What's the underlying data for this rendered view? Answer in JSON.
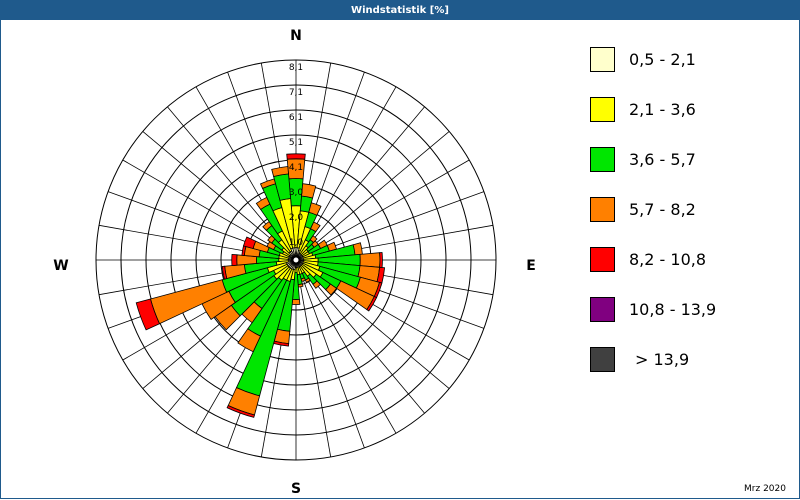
{
  "window": {
    "title": "Windstatistik [%]"
  },
  "credit": "Mrz 2020",
  "chart_data": {
    "type": "windrose",
    "title": "Windstatistik [%]",
    "directions": [
      "N",
      "E",
      "S",
      "W"
    ],
    "radial_ticks": [
      "1,0",
      "2,0",
      "3,0",
      "4,1",
      "5,1",
      "6,1",
      "7,1",
      "8,1"
    ],
    "radial_max": 8.1,
    "sector_count": 36,
    "speed_classes": [
      {
        "label": "0,5 - 2,1",
        "color": "#ffffcc"
      },
      {
        "label": "2,1 - 3,6",
        "color": "#ffff00"
      },
      {
        "label": "3,6 - 5,7",
        "color": "#00e600"
      },
      {
        "label": "5,7 - 8,2",
        "color": "#ff8000"
      },
      {
        "label": "8,2 - 10,8",
        "color": "#ff0000"
      },
      {
        "label": "10,8 - 13,9",
        "color": "#800080"
      },
      {
        "label": "> 13,9",
        "color": "#404040"
      }
    ],
    "sectors": [
      {
        "dir": 0,
        "cumulative": [
          0.5,
          2.2,
          3.3,
          4.1,
          4.3
        ]
      },
      {
        "dir": 10,
        "cumulative": [
          0.5,
          2.0,
          2.6,
          3.1
        ]
      },
      {
        "dir": 20,
        "cumulative": [
          0.4,
          1.4,
          2.0,
          2.4
        ]
      },
      {
        "dir": 30,
        "cumulative": [
          0.3,
          0.9,
          1.4,
          1.7
        ]
      },
      {
        "dir": 40,
        "cumulative": [
          0.3,
          0.7,
          1.0,
          1.2
        ]
      },
      {
        "dir": 50,
        "cumulative": [
          0.3,
          0.6,
          0.9,
          1.1
        ]
      },
      {
        "dir": 60,
        "cumulative": [
          0.3,
          0.6,
          1.1,
          1.4
        ]
      },
      {
        "dir": 70,
        "cumulative": [
          0.3,
          0.7,
          1.4,
          1.7
        ]
      },
      {
        "dir": 80,
        "cumulative": [
          0.3,
          0.8,
          2.4,
          2.7
        ]
      },
      {
        "dir": 90,
        "cumulative": [
          0.3,
          0.9,
          2.6,
          3.4,
          3.5
        ]
      },
      {
        "dir": 100,
        "cumulative": [
          0.3,
          0.9,
          2.6,
          3.4,
          3.6
        ]
      },
      {
        "dir": 110,
        "cumulative": [
          0.3,
          1.0,
          2.7,
          3.5,
          3.6
        ]
      },
      {
        "dir": 120,
        "cumulative": [
          0.3,
          1.2,
          2.0,
          3.5,
          3.6
        ]
      },
      {
        "dir": 130,
        "cumulative": [
          0.3,
          1.0,
          1.7,
          2.0
        ]
      },
      {
        "dir": 140,
        "cumulative": [
          0.3,
          0.8,
          1.2,
          1.4
        ]
      },
      {
        "dir": 150,
        "cumulative": [
          0.3,
          0.6,
          0.9,
          1.0
        ]
      },
      {
        "dir": 160,
        "cumulative": [
          0.3,
          0.6,
          0.8,
          0.9
        ]
      },
      {
        "dir": 170,
        "cumulative": [
          0.3,
          0.6,
          1.0,
          1.1
        ]
      },
      {
        "dir": 180,
        "cumulative": [
          0.3,
          0.5,
          1.6,
          1.8
        ]
      },
      {
        "dir": 190,
        "cumulative": [
          0.4,
          0.8,
          2.9,
          3.4,
          3.5
        ]
      },
      {
        "dir": 200,
        "cumulative": [
          0.4,
          0.9,
          5.7,
          6.5,
          6.6
        ]
      },
      {
        "dir": 210,
        "cumulative": [
          0.4,
          0.9,
          3.4,
          4.1
        ]
      },
      {
        "dir": 220,
        "cumulative": [
          0.4,
          1.0,
          2.4,
          3.1
        ]
      },
      {
        "dir": 230,
        "cumulative": [
          0.4,
          1.1,
          3.2,
          4.0
        ]
      },
      {
        "dir": 240,
        "cumulative": [
          0.4,
          1.0,
          3.0,
          4.2
        ]
      },
      {
        "dir": 250,
        "cumulative": [
          0.4,
          1.2,
          3.1,
          6.1,
          6.7
        ]
      },
      {
        "dir": 260,
        "cumulative": [
          0.3,
          0.8,
          2.1,
          2.9,
          3.0
        ]
      },
      {
        "dir": 270,
        "cumulative": [
          0.3,
          0.7,
          1.6,
          2.4,
          2.6
        ]
      },
      {
        "dir": 280,
        "cumulative": [
          0.3,
          0.7,
          1.5,
          2.1,
          2.2
        ]
      },
      {
        "dir": 290,
        "cumulative": [
          0.3,
          0.7,
          1.2,
          1.8,
          2.2
        ]
      },
      {
        "dir": 300,
        "cumulative": [
          0.3,
          0.6,
          1.0,
          1.3
        ]
      },
      {
        "dir": 310,
        "cumulative": [
          0.3,
          0.7,
          1.2,
          1.4
        ]
      },
      {
        "dir": 320,
        "cumulative": [
          0.4,
          1.0,
          1.7,
          1.9
        ]
      },
      {
        "dir": 330,
        "cumulative": [
          0.4,
          1.3,
          2.5,
          2.8
        ]
      },
      {
        "dir": 340,
        "cumulative": [
          0.5,
          2.2,
          3.2,
          3.4
        ]
      },
      {
        "dir": 350,
        "cumulative": [
          0.5,
          2.5,
          3.5,
          3.8
        ]
      }
    ]
  }
}
